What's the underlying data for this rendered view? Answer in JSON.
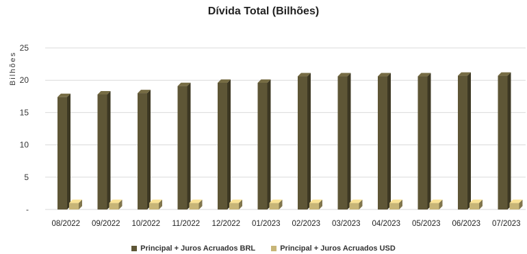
{
  "chart_data": {
    "type": "bar",
    "title": "Dívida Total (Bilhões)",
    "ylabel": "Bilhões",
    "xlabel": "",
    "ylim": [
      0,
      25
    ],
    "yticks": [
      0,
      5,
      10,
      15,
      20,
      25
    ],
    "ytick_labels": [
      "-",
      "5",
      "10",
      "15",
      "20",
      "25"
    ],
    "grid": true,
    "legend_position": "bottom",
    "categories": [
      "08/2022",
      "09/2022",
      "10/2022",
      "11/2022",
      "12/2022",
      "01/2023",
      "02/2023",
      "03/2023",
      "04/2023",
      "05/2023",
      "06/2023",
      "07/2023"
    ],
    "series": [
      {
        "name": "Principal + Juros Acruados BRL",
        "color": "#5e5636",
        "values": [
          17.4,
          17.8,
          18.0,
          19.1,
          19.6,
          19.6,
          20.6,
          20.6,
          20.6,
          20.6,
          20.7,
          20.7
        ]
      },
      {
        "name": "Principal + Juros Acruados USD",
        "color": "#c7b577",
        "values": [
          1.0,
          1.0,
          1.0,
          1.0,
          1.0,
          1.0,
          1.0,
          1.0,
          1.0,
          1.0,
          1.0,
          1.0
        ]
      }
    ]
  }
}
